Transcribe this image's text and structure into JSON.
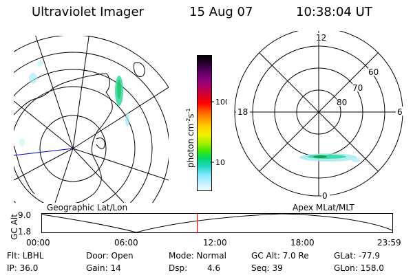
{
  "header": {
    "instrument": "Ultraviolet Imager",
    "date": "15 Aug 07",
    "time": "10:38:04 UT"
  },
  "left_map": {
    "label": "Geographic Lat/Lon"
  },
  "colorbar": {
    "unit_label": "photon cm",
    "unit_sup1": "-2",
    "unit_mid": "s",
    "unit_sup2": "-1",
    "ticks": [
      "100",
      "10"
    ],
    "colors": [
      "#000000",
      "#2b0030",
      "#5a0060",
      "#8a007f",
      "#b00060",
      "#d8002a",
      "#ff0000",
      "#ff5a00",
      "#ff9a00",
      "#ffd200",
      "#f0f000",
      "#a8f000",
      "#40e800",
      "#00d870",
      "#20d8c0",
      "#80e8ff",
      "#c0f0ff",
      "#eefcff"
    ]
  },
  "right_map": {
    "label": "Apex MLat/MLT",
    "mlt_labels": [
      "12",
      "18",
      "6",
      "0"
    ],
    "mlat_labels": [
      "60",
      "70",
      "80"
    ]
  },
  "altitude_plot": {
    "ylabel": "GC Alt",
    "yticks": [
      "9.0",
      "1.8"
    ],
    "xticks": [
      "00:00",
      "06:00",
      "12:00",
      "18:00",
      "23:59"
    ],
    "marker_hours": 10.63,
    "marker_color": "#ff0000"
  },
  "info": {
    "flt": "Flt: LBHL",
    "door": "Door: Open",
    "mode": "Mode: Normal",
    "gc_alt": "GC Alt: 7.0 Re",
    "glat": "GLat: -77.9",
    "ip": "IP: 36.0",
    "gain": "Gain: 14",
    "dsp_label": "Dsp:",
    "dsp_value": "4.6",
    "seq": "Seq: 39",
    "glon": "GLon: 158.0"
  }
}
